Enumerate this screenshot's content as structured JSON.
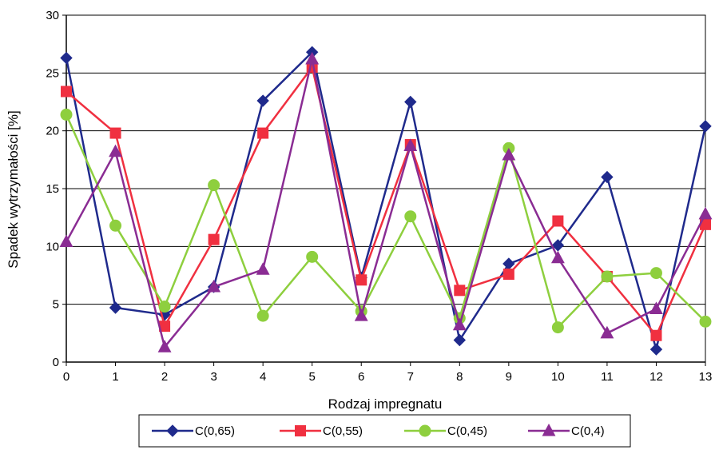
{
  "chart_data": {
    "type": "line",
    "xlabel": "Rodzaj impregnatu",
    "ylabel": "Spadek wytrzymałości [%]",
    "x": [
      0,
      1,
      2,
      3,
      4,
      5,
      6,
      7,
      8,
      9,
      10,
      11,
      12,
      13
    ],
    "x_ticks": [
      "0",
      "1",
      "2",
      "3",
      "4",
      "5",
      "6",
      "7",
      "8",
      "9",
      "10",
      "11",
      "12",
      "13"
    ],
    "ylim": [
      0,
      30
    ],
    "y_ticks": [
      "0",
      "5",
      "10",
      "15",
      "20",
      "25",
      "30"
    ],
    "grid": "horizontal",
    "legend_position": "bottom",
    "series": [
      {
        "name": "C(0,65)",
        "color": "#1f2a8c",
        "marker": "diamond",
        "values": [
          26.3,
          4.7,
          4.1,
          6.5,
          22.6,
          26.8,
          7.3,
          22.5,
          1.9,
          8.5,
          10.1,
          16.0,
          1.1,
          20.4
        ]
      },
      {
        "name": "C(0,55)",
        "color": "#f03040",
        "marker": "square",
        "values": [
          23.4,
          19.8,
          3.1,
          10.6,
          19.8,
          25.5,
          7.1,
          18.8,
          6.2,
          7.6,
          12.2,
          7.4,
          2.3,
          11.9
        ]
      },
      {
        "name": "C(0,45)",
        "color": "#8ecf3e",
        "marker": "circle",
        "values": [
          21.4,
          11.8,
          4.8,
          15.3,
          4.0,
          9.1,
          4.4,
          12.6,
          3.8,
          18.5,
          3.0,
          7.4,
          7.7,
          3.5
        ]
      },
      {
        "name": "C(0,4)",
        "color": "#8a2c93",
        "marker": "triangle",
        "values": [
          10.4,
          18.2,
          1.3,
          6.5,
          8.0,
          26.2,
          4.0,
          18.7,
          3.2,
          17.9,
          9.0,
          2.5,
          4.6,
          12.8
        ]
      }
    ]
  }
}
